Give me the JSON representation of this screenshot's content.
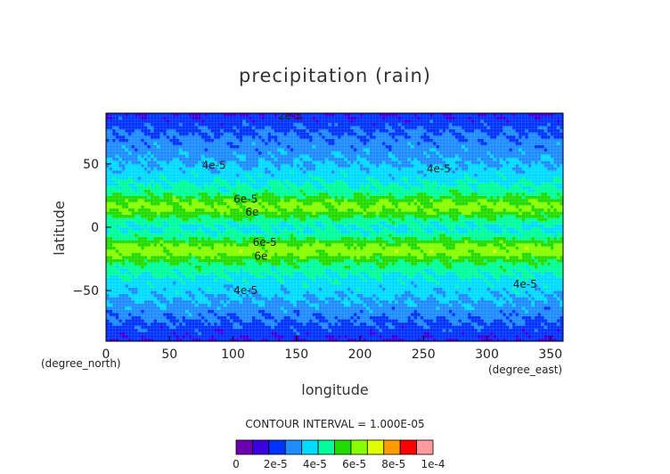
{
  "chart_data": {
    "type": "heatmap",
    "title": "precipitation (rain)",
    "xlabel": "longitude",
    "ylabel": "latitude",
    "x_unit": "(degree_east)",
    "y_unit": "(degree_north)",
    "xlim": [
      0,
      360
    ],
    "ylim": [
      -90,
      90
    ],
    "x_ticks": [
      0,
      50,
      100,
      150,
      200,
      250,
      300,
      350
    ],
    "y_ticks": [
      -50,
      0,
      50
    ],
    "grid": true,
    "contour_interval_text": "CONTOUR INTERVAL = 1.000E-05",
    "colorbar": {
      "colors": [
        "#6a00b0",
        "#3a00e0",
        "#0033ff",
        "#1e8cff",
        "#00dcff",
        "#00ff9a",
        "#22dc00",
        "#88ff00",
        "#e0ff00",
        "#ff9a00",
        "#ff0000",
        "#ff9aa0"
      ],
      "tick_labels": [
        "0",
        "2e-5",
        "4e-5",
        "6e-5",
        "8e-5",
        "1e-4"
      ],
      "range": [
        0,
        0.00012
      ]
    },
    "zonal_mean_profile": {
      "latitude": [
        -90,
        -80,
        -70,
        -60,
        -50,
        -40,
        -30,
        -25,
        -20,
        -15,
        -10,
        -5,
        0,
        5,
        10,
        15,
        20,
        25,
        30,
        40,
        50,
        60,
        70,
        80,
        90
      ],
      "value": [
        2e-05,
        2.6e-05,
        3.2e-05,
        3.8e-05,
        4.3e-05,
        4.8e-05,
        5.7e-05,
        6.4e-05,
        7.5e-05,
        7.3e-05,
        6.2e-05,
        5.2e-05,
        4.8e-05,
        5.5e-05,
        6.4e-05,
        7.3e-05,
        7e-05,
        6e-05,
        5.3e-05,
        4.6e-05,
        4e-05,
        3.6e-05,
        3.2e-05,
        2.7e-05,
        2e-05
      ]
    },
    "contour_labels": [
      {
        "text": "2e-5",
        "lon": 145,
        "lat": 88
      },
      {
        "text": "4e-5",
        "lon": 85,
        "lat": 49
      },
      {
        "text": "4e-5",
        "lon": 262,
        "lat": 46
      },
      {
        "text": "6e-5",
        "lon": 110,
        "lat": 22
      },
      {
        "text": "6e",
        "lon": 115,
        "lat": 12
      },
      {
        "text": "6e-5",
        "lon": 125,
        "lat": -12
      },
      {
        "text": "6e",
        "lon": 122,
        "lat": -23
      },
      {
        "text": "4e-5",
        "lon": 110,
        "lat": -50
      },
      {
        "text": "4e-5",
        "lon": 330,
        "lat": -45
      }
    ]
  }
}
